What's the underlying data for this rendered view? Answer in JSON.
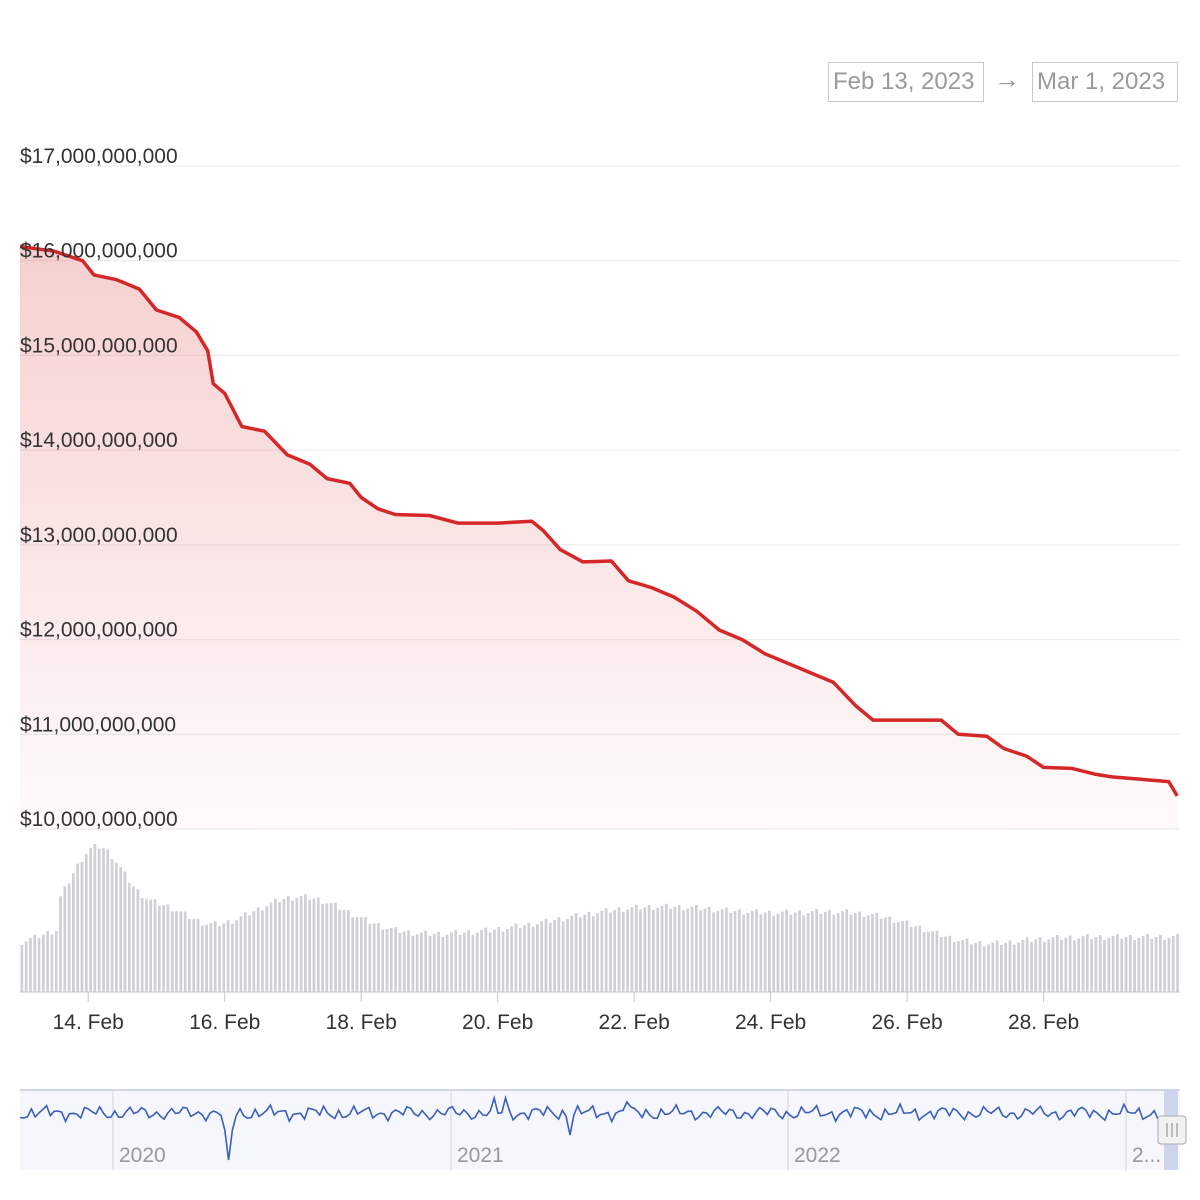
{
  "range_selector": {
    "from": "Feb 13, 2023",
    "arrow": "→",
    "to": "Mar 1, 2023"
  },
  "colors": {
    "line": "#d62728",
    "volume": "#cfd0d4",
    "navigator_line": "#3b5fb5",
    "grid": "#e8e8e8"
  },
  "chart_data": {
    "type": "line",
    "x_start": "2023-02-13",
    "x_end": "2023-03-01",
    "ylim": [
      10000000000,
      17000000000
    ],
    "y_ticks": [
      "$17,000,000,000",
      "$16,000,000,000",
      "$15,000,000,000",
      "$14,000,000,000",
      "$13,000,000,000",
      "$12,000,000,000",
      "$11,000,000,000",
      "$10,000,000,000"
    ],
    "y_tick_values": [
      17000000000,
      16000000000,
      15000000000,
      14000000000,
      13000000000,
      12000000000,
      11000000000,
      10000000000
    ],
    "x_ticks": [
      "14. Feb",
      "16. Feb",
      "18. Feb",
      "20. Feb",
      "22. Feb",
      "24. Feb",
      "26. Feb",
      "28. Feb"
    ],
    "x_tick_dates": [
      "2023-02-14",
      "2023-02-16",
      "2023-02-18",
      "2023-02-20",
      "2023-02-22",
      "2023-02-24",
      "2023-02-26",
      "2023-02-28"
    ],
    "series": [
      {
        "values": [
          [
            "2023-02-13",
            16150000000
          ],
          [
            "2023-02-13T12:00",
            16100000000
          ],
          [
            "2023-02-13T22:00",
            16000000000
          ],
          [
            "2023-02-14T02:00",
            15850000000
          ],
          [
            "2023-02-14T10:00",
            15800000000
          ],
          [
            "2023-02-14T18:00",
            15700000000
          ],
          [
            "2023-02-15T00:00",
            15480000000
          ],
          [
            "2023-02-15T08:00",
            15400000000
          ],
          [
            "2023-02-15T14:00",
            15250000000
          ],
          [
            "2023-02-15T18:00",
            15050000000
          ],
          [
            "2023-02-15T20:00",
            14700000000
          ],
          [
            "2023-02-16T00:00",
            14600000000
          ],
          [
            "2023-02-16T06:00",
            14250000000
          ],
          [
            "2023-02-16T14:00",
            14200000000
          ],
          [
            "2023-02-16T22:00",
            13950000000
          ],
          [
            "2023-02-17T06:00",
            13850000000
          ],
          [
            "2023-02-17T12:00",
            13700000000
          ],
          [
            "2023-02-17T20:00",
            13650000000
          ],
          [
            "2023-02-18T00:00",
            13500000000
          ],
          [
            "2023-02-18T06:00",
            13380000000
          ],
          [
            "2023-02-18T12:00",
            13320000000
          ],
          [
            "2023-02-19T00:00",
            13310000000
          ],
          [
            "2023-02-19T10:00",
            13230000000
          ],
          [
            "2023-02-20T00:00",
            13230000000
          ],
          [
            "2023-02-20T12:00",
            13250000000
          ],
          [
            "2023-02-20T16:00",
            13150000000
          ],
          [
            "2023-02-20T22:00",
            12950000000
          ],
          [
            "2023-02-21T06:00",
            12820000000
          ],
          [
            "2023-02-21T16:00",
            12830000000
          ],
          [
            "2023-02-21T22:00",
            12620000000
          ],
          [
            "2023-02-22T06:00",
            12550000000
          ],
          [
            "2023-02-22T14:00",
            12450000000
          ],
          [
            "2023-02-22T22:00",
            12300000000
          ],
          [
            "2023-02-23T06:00",
            12100000000
          ],
          [
            "2023-02-23T14:00",
            12000000000
          ],
          [
            "2023-02-23T22:00",
            11850000000
          ],
          [
            "2023-02-24T06:00",
            11750000000
          ],
          [
            "2023-02-24T14:00",
            11650000000
          ],
          [
            "2023-02-24T22:00",
            11550000000
          ],
          [
            "2023-02-25T06:00",
            11300000000
          ],
          [
            "2023-02-25T12:00",
            11150000000
          ],
          [
            "2023-02-26T00:00",
            11150000000
          ],
          [
            "2023-02-26T12:00",
            11150000000
          ],
          [
            "2023-02-26T18:00",
            11000000000
          ],
          [
            "2023-02-27T04:00",
            10980000000
          ],
          [
            "2023-02-27T10:00",
            10850000000
          ],
          [
            "2023-02-27T18:00",
            10770000000
          ],
          [
            "2023-02-28T00:00",
            10650000000
          ],
          [
            "2023-02-28T10:00",
            10640000000
          ],
          [
            "2023-02-28T18:00",
            10580000000
          ],
          [
            "2023-03-01T00:00",
            10550000000
          ],
          [
            "2023-03-01T12:00",
            10520000000
          ],
          [
            "2023-03-01T20:00",
            10500000000
          ],
          [
            "2023-03-01T23:00",
            10350000000
          ]
        ]
      }
    ],
    "grid": true,
    "legend": "none"
  },
  "navigator": {
    "labels": [
      "2020",
      "2021",
      "2022",
      "2..."
    ]
  }
}
